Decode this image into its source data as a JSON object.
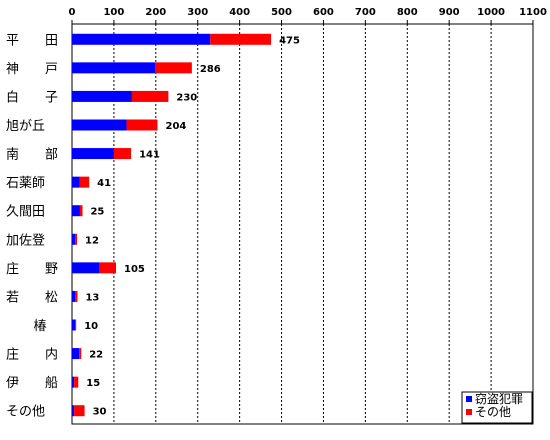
{
  "chart_data": {
    "type": "bar",
    "orientation": "horizontal",
    "stacked": true,
    "categories": [
      "平　　田",
      "神　　戸",
      "白　　子",
      "旭が丘",
      "南　　部",
      "石薬師",
      "久間田",
      "加佐登",
      "庄　　野",
      "若　　松",
      "椿",
      "庄　　内",
      "伊　　船",
      "その他"
    ],
    "series": [
      {
        "name": "窃盗犯罪",
        "color": "#0000ff",
        "values": [
          330,
          198,
          143,
          130,
          100,
          18,
          19,
          8,
          66,
          8,
          8,
          17,
          5,
          5
        ]
      },
      {
        "name": "その他",
        "color": "#ff0000",
        "values": [
          145,
          88,
          87,
          74,
          41,
          23,
          6,
          4,
          39,
          5,
          2,
          5,
          10,
          25
        ]
      }
    ],
    "totals": [
      475,
      286,
      230,
      204,
      141,
      41,
      25,
      12,
      105,
      13,
      10,
      22,
      15,
      30
    ],
    "xlim": [
      0,
      1100
    ],
    "xticks": [
      0,
      100,
      200,
      300,
      400,
      500,
      600,
      700,
      800,
      900,
      1000,
      1100
    ],
    "grid": "vertical dashed",
    "legend_position": "bottom-right"
  }
}
